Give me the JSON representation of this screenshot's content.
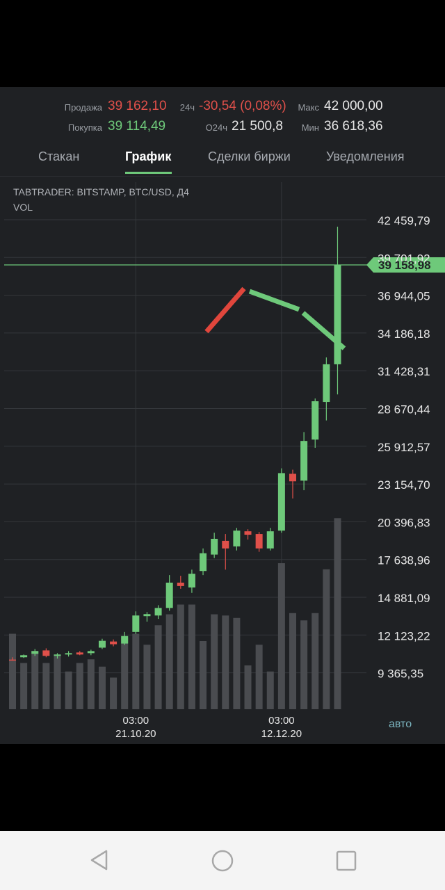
{
  "ticker": {
    "sell_label": "Продажа",
    "sell_value": "39 162,10",
    "buy_label": "Покупка",
    "buy_value": "39 114,49",
    "change_label": "24ч",
    "change_value": "-30,54 (0,08%)",
    "volume_label": "O24ч",
    "volume_value": "21 500,8",
    "max_label": "Макс",
    "max_value": "42 000,00",
    "min_label": "Мин",
    "min_value": "36 618,36"
  },
  "tabs": [
    {
      "label": "Стакан"
    },
    {
      "label": "График"
    },
    {
      "label": "Сделки биржи"
    },
    {
      "label": "Уведомления"
    }
  ],
  "chart": {
    "title": "TABTRADER: BITSTAMP, BTC/USD, Д4",
    "volume_label": "VOL",
    "auto_label": "авто",
    "current_price_label": "39 158,98"
  },
  "chart_data": {
    "type": "candlestick",
    "title": "TABTRADER: BITSTAMP, BTC/USD, Д4",
    "y_ticks": [
      42459.79,
      39701.92,
      36944.05,
      34186.18,
      31428.31,
      28670.44,
      25912.57,
      23154.7,
      20396.83,
      17638.96,
      14881.09,
      12123.22,
      9365.35
    ],
    "y_tick_labels": [
      "42 459,79",
      "39 701,92",
      "36 944,05",
      "34 186,18",
      "31 428,31",
      "28 670,44",
      "25 912,57",
      "23 154,70",
      "20 396,83",
      "17 638,96",
      "14 881,09",
      "12 123,22",
      "9 365,35"
    ],
    "x_tick_labels": [
      {
        "time": "03:00",
        "date": "21.10.20",
        "index": 11
      },
      {
        "time": "03:00",
        "date": "12.12.20",
        "index": 24
      }
    ],
    "current_price": 39158.98,
    "grid": true,
    "series": [
      {
        "o": 10330,
        "h": 10500,
        "l": 10250,
        "c": 10300
      },
      {
        "o": 10500,
        "h": 10700,
        "l": 10450,
        "c": 10650
      },
      {
        "o": 10750,
        "h": 11100,
        "l": 10600,
        "c": 10950
      },
      {
        "o": 11000,
        "h": 11150,
        "l": 10500,
        "c": 10600
      },
      {
        "o": 10600,
        "h": 10800,
        "l": 10400,
        "c": 10700
      },
      {
        "o": 10700,
        "h": 10950,
        "l": 10550,
        "c": 10800
      },
      {
        "o": 10850,
        "h": 10950,
        "l": 10650,
        "c": 10700
      },
      {
        "o": 10800,
        "h": 11050,
        "l": 10650,
        "c": 10950
      },
      {
        "o": 11200,
        "h": 11850,
        "l": 11100,
        "c": 11700
      },
      {
        "o": 11650,
        "h": 11800,
        "l": 11300,
        "c": 11450
      },
      {
        "o": 11500,
        "h": 12350,
        "l": 11400,
        "c": 12050
      },
      {
        "o": 12350,
        "h": 13850,
        "l": 12200,
        "c": 13550
      },
      {
        "o": 13500,
        "h": 13800,
        "l": 13100,
        "c": 13650
      },
      {
        "o": 13550,
        "h": 14300,
        "l": 13300,
        "c": 14100
      },
      {
        "o": 14100,
        "h": 16500,
        "l": 13900,
        "c": 15950
      },
      {
        "o": 15950,
        "h": 16450,
        "l": 15500,
        "c": 15700
      },
      {
        "o": 15600,
        "h": 16900,
        "l": 15200,
        "c": 16600
      },
      {
        "o": 16800,
        "h": 18450,
        "l": 16500,
        "c": 18100
      },
      {
        "o": 18000,
        "h": 19600,
        "l": 17750,
        "c": 19150
      },
      {
        "o": 19000,
        "h": 19500,
        "l": 16900,
        "c": 18450
      },
      {
        "o": 18600,
        "h": 19950,
        "l": 18300,
        "c": 19750
      },
      {
        "o": 19700,
        "h": 19850,
        "l": 19100,
        "c": 19450
      },
      {
        "o": 19500,
        "h": 19650,
        "l": 18200,
        "c": 18450
      },
      {
        "o": 18450,
        "h": 19950,
        "l": 18300,
        "c": 19700
      },
      {
        "o": 19750,
        "h": 24300,
        "l": 19600,
        "c": 23950
      },
      {
        "o": 23900,
        "h": 24200,
        "l": 22100,
        "c": 23350
      },
      {
        "o": 23400,
        "h": 26950,
        "l": 22700,
        "c": 26300
      },
      {
        "o": 26400,
        "h": 29400,
        "l": 25800,
        "c": 29200
      },
      {
        "o": 29150,
        "h": 32400,
        "l": 27800,
        "c": 31900
      },
      {
        "o": 31900,
        "h": 41950,
        "l": 29700,
        "c": 39158.98
      }
    ],
    "volume": [
      0.62,
      0.38,
      0.48,
      0.38,
      0.45,
      0.31,
      0.38,
      0.41,
      0.35,
      0.26,
      0.59,
      0.62,
      0.53,
      0.69,
      0.78,
      0.86,
      0.86,
      0.56,
      0.78,
      0.77,
      0.75,
      0.36,
      0.53,
      0.31,
      1.2,
      0.79,
      0.73,
      0.79,
      1.15,
      1.57
    ]
  }
}
